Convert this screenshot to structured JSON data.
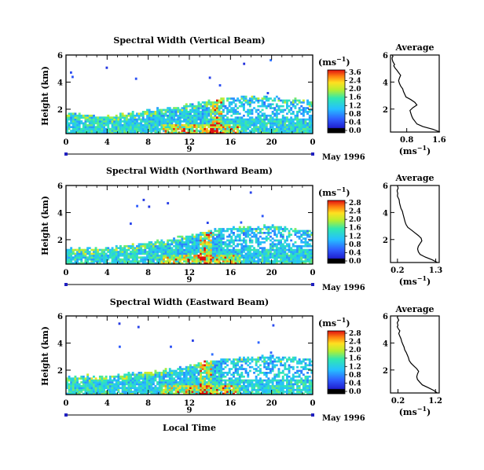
{
  "figure": {
    "bottom_label": "Local Time",
    "date_label": "May 1996"
  },
  "chart_data": [
    {
      "type": "heatmap",
      "title": "Spectral Width (Vertical Beam)",
      "ylabel": "Height (km)",
      "xlabel": "",
      "x_ticks": [
        "0",
        "4",
        "8",
        "12",
        "16",
        "20",
        "0"
      ],
      "xlim": [
        0,
        24
      ],
      "y_ticks": [
        "2",
        "4",
        "6"
      ],
      "ylim": [
        0.2,
        6.0
      ],
      "day_label": "9",
      "date_label": "May 1996",
      "colorbar": {
        "unit": "(ms⁻¹)",
        "range": [
          0,
          3.6
        ],
        "ticks": [
          "3.6",
          "2.4",
          "2.0",
          "1.6",
          "1.2",
          "0.8",
          "0.4",
          "0.0"
        ]
      },
      "height_profile": [
        1.7,
        1.4,
        1.7,
        2.1,
        2.5,
        2.8,
        2.8,
        2.5
      ],
      "storm_pos": [
        14,
        15
      ],
      "seed": 11,
      "average": {
        "title": "Average",
        "xlabel": "(ms⁻¹)",
        "x_ticks": [
          "0.8",
          "1.6"
        ],
        "xlim": [
          0.4,
          1.6
        ],
        "y_ticks": [
          "2",
          "4",
          "6"
        ],
        "ylim": [
          0.3,
          6.0
        ],
        "x": [
          1.62,
          1.45,
          1.2,
          1.05,
          1.0,
          0.95,
          0.92,
          0.9,
          0.88,
          0.95,
          1.05,
          1.0,
          0.9,
          0.78,
          0.75,
          0.72,
          0.7,
          0.65,
          0.62,
          0.6,
          0.62,
          0.65,
          0.6,
          0.55,
          0.52,
          0.5,
          0.48,
          0.5,
          0.48,
          0.46,
          0.45,
          0.44,
          0.44,
          0.46,
          0.45,
          0.44
        ],
        "y": [
          0.3,
          0.5,
          0.7,
          0.9,
          1.1,
          1.3,
          1.5,
          1.7,
          1.9,
          2.1,
          2.3,
          2.5,
          2.7,
          2.9,
          3.1,
          3.3,
          3.5,
          3.7,
          3.9,
          4.1,
          4.3,
          4.5,
          4.7,
          4.9,
          5.0,
          5.1,
          5.2,
          5.3,
          5.4,
          5.5,
          5.6,
          5.7,
          5.8,
          5.9,
          5.95,
          6.0
        ]
      }
    },
    {
      "type": "heatmap",
      "title": "Spectral Width (Northward Beam)",
      "ylabel": "Height (km)",
      "xlabel": "",
      "x_ticks": [
        "0",
        "4",
        "8",
        "12",
        "16",
        "20",
        "0"
      ],
      "xlim": [
        0,
        24
      ],
      "y_ticks": [
        "2",
        "4",
        "6"
      ],
      "ylim": [
        0.2,
        6.0
      ],
      "day_label": "9",
      "date_label": "May 1996",
      "colorbar": {
        "unit": "(ms⁻¹)",
        "range": [
          0,
          2.8
        ],
        "ticks": [
          "2.8",
          "2.4",
          "2.0",
          "1.6",
          "1.2",
          "0.8",
          "0.4",
          "0.0"
        ]
      },
      "height_profile": [
        1.3,
        1.3,
        1.6,
        2.0,
        2.6,
        2.9,
        2.9,
        2.6
      ],
      "storm_pos": [
        13,
        14
      ],
      "seed": 23,
      "average": {
        "title": "Average",
        "xlabel": "(ms⁻¹)",
        "x_ticks": [
          "0.2",
          "1.3"
        ],
        "xlim": [
          0.0,
          1.4
        ],
        "y_ticks": [
          "2",
          "4",
          "6"
        ],
        "ylim": [
          0.3,
          6.0
        ],
        "x": [
          1.35,
          1.2,
          1.0,
          0.85,
          0.8,
          0.78,
          0.8,
          0.85,
          0.9,
          0.88,
          0.8,
          0.7,
          0.6,
          0.5,
          0.45,
          0.42,
          0.4,
          0.38,
          0.36,
          0.34,
          0.3,
          0.28,
          0.26,
          0.25,
          0.24,
          0.22,
          0.2,
          0.2,
          0.21,
          0.2,
          0.19,
          0.2,
          0.22,
          0.21,
          0.2,
          0.2
        ],
        "y": [
          0.3,
          0.5,
          0.7,
          0.9,
          1.1,
          1.3,
          1.5,
          1.7,
          1.9,
          2.1,
          2.3,
          2.5,
          2.7,
          2.9,
          3.1,
          3.3,
          3.5,
          3.7,
          3.9,
          4.1,
          4.3,
          4.5,
          4.7,
          4.9,
          5.0,
          5.1,
          5.2,
          5.3,
          5.4,
          5.5,
          5.6,
          5.7,
          5.8,
          5.9,
          5.95,
          6.0
        ]
      }
    },
    {
      "type": "heatmap",
      "title": "Spectral Width (Eastward Beam)",
      "ylabel": "Height (km)",
      "xlabel": "Local Time",
      "x_ticks": [
        "0",
        "4",
        "8",
        "12",
        "16",
        "20",
        "0"
      ],
      "xlim": [
        0,
        24
      ],
      "y_ticks": [
        "2",
        "4",
        "6"
      ],
      "ylim": [
        0.2,
        6.0
      ],
      "day_label": "9",
      "date_label": "May 1996",
      "colorbar": {
        "unit": "(ms⁻¹)",
        "range": [
          0,
          2.8
        ],
        "ticks": [
          "2.8",
          "2.4",
          "2.0",
          "1.6",
          "1.2",
          "0.8",
          "0.4",
          "0.0"
        ]
      },
      "height_profile": [
        1.5,
        1.5,
        1.7,
        2.0,
        2.6,
        2.9,
        2.9,
        2.7
      ],
      "storm_pos": [
        13,
        14
      ],
      "seed": 37,
      "average": {
        "title": "Average",
        "xlabel": "(ms⁻¹)",
        "x_ticks": [
          "0.2",
          "1.2"
        ],
        "xlim": [
          0.0,
          1.3
        ],
        "y_ticks": [
          "2",
          "4",
          "6"
        ],
        "ylim": [
          0.3,
          6.0
        ],
        "x": [
          1.25,
          1.15,
          1.0,
          0.85,
          0.78,
          0.72,
          0.7,
          0.72,
          0.75,
          0.7,
          0.62,
          0.55,
          0.5,
          0.48,
          0.45,
          0.42,
          0.38,
          0.36,
          0.33,
          0.3,
          0.28,
          0.25,
          0.22,
          0.25,
          0.22,
          0.2,
          0.18,
          0.2,
          0.19,
          0.18,
          0.2,
          0.22,
          0.2,
          0.18,
          0.19,
          0.2
        ],
        "y": [
          0.3,
          0.5,
          0.7,
          0.9,
          1.1,
          1.3,
          1.5,
          1.7,
          1.9,
          2.1,
          2.3,
          2.5,
          2.7,
          2.9,
          3.1,
          3.3,
          3.5,
          3.7,
          3.9,
          4.1,
          4.3,
          4.5,
          4.7,
          4.9,
          5.0,
          5.1,
          5.2,
          5.3,
          5.4,
          5.5,
          5.6,
          5.7,
          5.8,
          5.9,
          5.95,
          6.0
        ]
      }
    }
  ]
}
